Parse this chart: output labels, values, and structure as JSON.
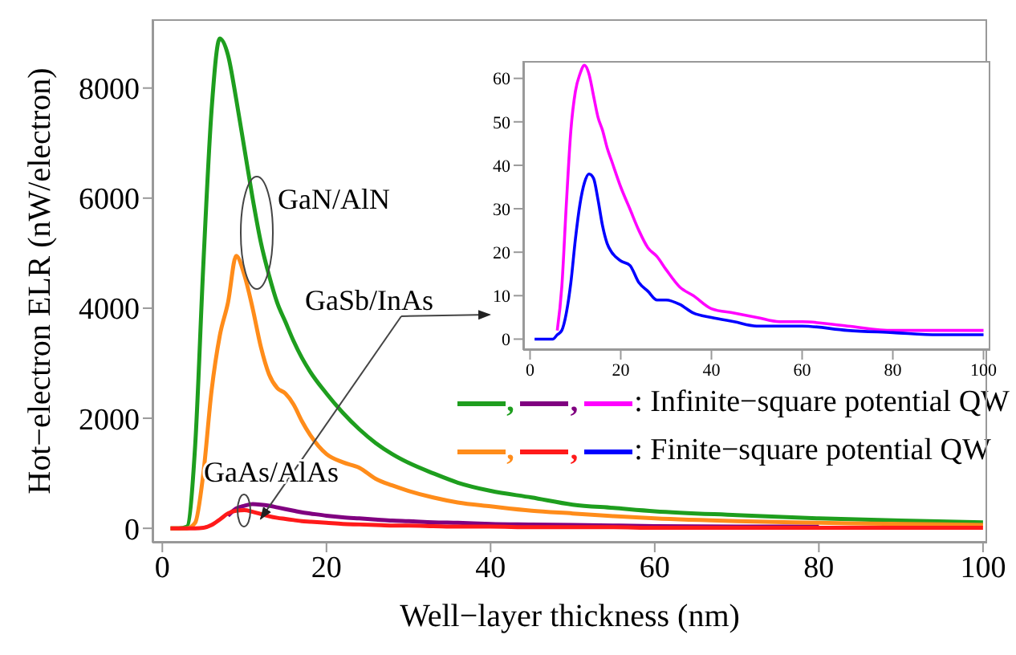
{
  "chart_data": [
    {
      "type": "line",
      "xlabel": "Well−layer thickness (nm)",
      "ylabel": "Hot−electron ELR (nW/electron)",
      "xlim": [
        -1.2,
        100.5
      ],
      "ylim": [
        -260,
        9250
      ],
      "xticks": [
        0,
        20,
        40,
        60,
        80,
        100
      ],
      "yticks": [
        0,
        2000,
        4000,
        6000,
        8000
      ],
      "annotations": [
        "GaN/AlN",
        {
          "text": "GaSb/InAs",
          "x": 12,
          "y": 175
        },
        "GaAs/AlAs",
        ": Infinite−square potential QW",
        ": Finite−square potential QW",
        ","
      ],
      "x": [
        1,
        2,
        3,
        4,
        5,
        6,
        7,
        8,
        9,
        10,
        11,
        12,
        13,
        14,
        15,
        16,
        17,
        18,
        20,
        22,
        24,
        26,
        28,
        30,
        33,
        36,
        40,
        45,
        50,
        55,
        60,
        70,
        80,
        90,
        100
      ],
      "series": [
        {
          "color": "#1e9e1e",
          "values": [
            0,
            0,
            30,
            1500,
            4800,
            7600,
            8900,
            8600,
            7800,
            6900,
            6000,
            5200,
            4600,
            4100,
            3750,
            3400,
            3100,
            2850,
            2450,
            2100,
            1800,
            1550,
            1350,
            1190,
            1000,
            830,
            680,
            560,
            430,
            370,
            310,
            240,
            180,
            140,
            110
          ]
        },
        {
          "color": "#800080",
          "values": [
            null,
            null,
            null,
            null,
            null,
            null,
            null,
            230,
            360,
            410,
            440,
            430,
            410,
            380,
            350,
            320,
            290,
            270,
            230,
            200,
            180,
            160,
            140,
            130,
            110,
            100,
            80,
            70,
            60,
            50,
            40,
            30,
            30,
            null,
            null
          ]
        },
        {
          "color": "#ff8c1a",
          "values": [
            0,
            0,
            0,
            100,
            1000,
            2500,
            3500,
            4100,
            4950,
            4600,
            4000,
            3300,
            2800,
            2550,
            2450,
            2250,
            1950,
            1700,
            1350,
            1200,
            1100,
            900,
            780,
            680,
            560,
            470,
            400,
            320,
            270,
            220,
            180,
            130,
            100,
            80,
            60
          ]
        },
        {
          "color": "#ff1a1a",
          "values": [
            0,
            0,
            0,
            0,
            10,
            60,
            160,
            270,
            320,
            330,
            300,
            260,
            220,
            190,
            170,
            150,
            130,
            120,
            100,
            80,
            70,
            60,
            50,
            50,
            40,
            30,
            30,
            20,
            20,
            20,
            10,
            10,
            10,
            10,
            10
          ]
        }
      ]
    },
    {
      "type": "line",
      "xlim": [
        -1.5,
        101.5
      ],
      "ylim": [
        -2.5,
        64
      ],
      "xticks": [
        0,
        20,
        40,
        60,
        80,
        100
      ],
      "yticks": [
        0,
        10,
        20,
        30,
        40,
        50,
        60
      ],
      "x": [
        1,
        2,
        3,
        4,
        5,
        6,
        7,
        8,
        9,
        10,
        11,
        12,
        13,
        14,
        15,
        16,
        17,
        18,
        20,
        22,
        24,
        26,
        28,
        30,
        33,
        36,
        40,
        45,
        50,
        55,
        60,
        70,
        80,
        90,
        100
      ],
      "series": [
        {
          "color": "#ff00ff",
          "values": [
            null,
            null,
            null,
            null,
            null,
            2,
            12,
            31,
            48,
            57,
            61,
            63,
            61,
            56,
            51,
            48,
            44,
            41,
            35,
            30,
            25,
            21,
            19,
            16,
            12,
            10,
            7,
            6,
            5,
            4,
            4,
            3,
            2,
            2,
            2
          ]
        },
        {
          "color": "#0000ff",
          "values": [
            0,
            0,
            0,
            0,
            0,
            1,
            2,
            6,
            13,
            23,
            31,
            36,
            38,
            37,
            32,
            26,
            22,
            20,
            18,
            17,
            13,
            11,
            9,
            9,
            8,
            6,
            5,
            4,
            3,
            3,
            3,
            2,
            1.5,
            1,
            1
          ]
        }
      ]
    }
  ]
}
